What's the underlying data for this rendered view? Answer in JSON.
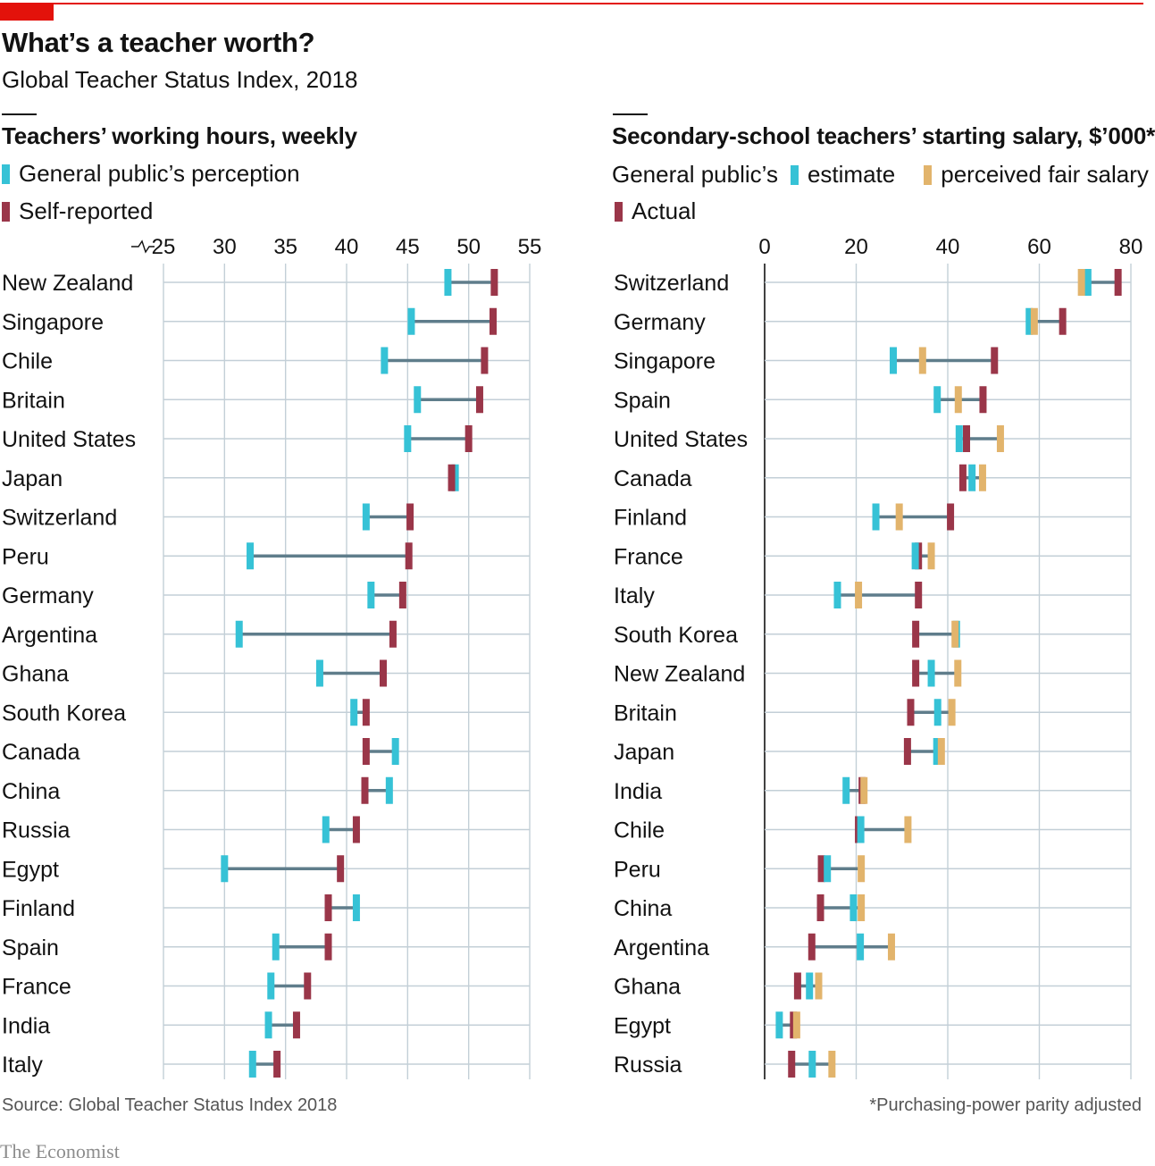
{
  "header": {
    "title": "What’s a teacher worth?",
    "subtitle": "Global Teacher Status Index, 2018"
  },
  "colors": {
    "estimate": "#36c2d6",
    "self": "#9a3649",
    "fair": "#e2b46c",
    "connector": "#5f7d8b",
    "grid": "#c3cfd7",
    "axis": "#121212",
    "brand": "#e3120b"
  },
  "left_chart": {
    "title": "Teachers’ working hours, weekly",
    "legend": [
      {
        "label": "General public’s perception",
        "color": "#36c2d6"
      },
      {
        "label": "Self-reported",
        "color": "#9a3649"
      }
    ]
  },
  "right_chart": {
    "title": "Secondary-school teachers’ starting salary, $’000*",
    "legend_prefix": "General public’s",
    "legend": [
      {
        "label": "estimate",
        "color": "#36c2d6"
      },
      {
        "label": "perceived fair salary",
        "color": "#e2b46c"
      },
      {
        "label": "Actual",
        "color": "#9a3649"
      }
    ]
  },
  "chart_data": [
    {
      "type": "dumbbell",
      "title": "Teachers’ working hours, weekly",
      "xlim": [
        25,
        55
      ],
      "axis_break": true,
      "ticks": [
        25,
        30,
        35,
        40,
        45,
        50,
        55
      ],
      "grid": true,
      "series": [
        {
          "name": "General public’s perception",
          "key": "perception"
        },
        {
          "name": "Self-reported",
          "key": "self"
        }
      ],
      "rows": [
        {
          "country": "New Zealand",
          "perception": 48.3,
          "self": 52.1
        },
        {
          "country": "Singapore",
          "perception": 45.3,
          "self": 52.0
        },
        {
          "country": "Chile",
          "perception": 43.1,
          "self": 51.3
        },
        {
          "country": "Britain",
          "perception": 45.8,
          "self": 50.9
        },
        {
          "country": "United States",
          "perception": 45.0,
          "self": 50.0
        },
        {
          "country": "Japan",
          "perception": 48.9,
          "self": 48.6
        },
        {
          "country": "Switzerland",
          "perception": 41.6,
          "self": 45.2
        },
        {
          "country": "Peru",
          "perception": 32.1,
          "self": 45.1
        },
        {
          "country": "Germany",
          "perception": 42.0,
          "self": 44.6
        },
        {
          "country": "Argentina",
          "perception": 31.2,
          "self": 43.8
        },
        {
          "country": "Ghana",
          "perception": 37.8,
          "self": 43.0
        },
        {
          "country": "South Korea",
          "perception": 40.6,
          "self": 41.6
        },
        {
          "country": "Canada",
          "perception": 44.0,
          "self": 41.6
        },
        {
          "country": "China",
          "perception": 43.5,
          "self": 41.5
        },
        {
          "country": "Russia",
          "perception": 38.3,
          "self": 40.8
        },
        {
          "country": "Egypt",
          "perception": 30.0,
          "self": 39.5
        },
        {
          "country": "Finland",
          "perception": 40.8,
          "self": 38.5
        },
        {
          "country": "Spain",
          "perception": 34.2,
          "self": 38.5
        },
        {
          "country": "France",
          "perception": 33.8,
          "self": 36.8
        },
        {
          "country": "India",
          "perception": 33.6,
          "self": 35.9
        },
        {
          "country": "Italy",
          "perception": 32.3,
          "self": 34.3
        }
      ]
    },
    {
      "type": "dumbbell",
      "title": "Secondary-school teachers’ starting salary, $’000*",
      "xlim": [
        0,
        80
      ],
      "ticks": [
        0,
        20,
        40,
        60,
        80
      ],
      "grid": true,
      "series": [
        {
          "name": "estimate",
          "key": "estimate"
        },
        {
          "name": "perceived fair salary",
          "key": "fair"
        },
        {
          "name": "Actual",
          "key": "actual"
        }
      ],
      "rows": [
        {
          "country": "Switzerland",
          "estimate": 70.6,
          "fair": 69.2,
          "actual": 77.2
        },
        {
          "country": "Germany",
          "estimate": 57.8,
          "fair": 58.9,
          "actual": 65.1
        },
        {
          "country": "Singapore",
          "estimate": 28.1,
          "fair": 34.5,
          "actual": 50.2
        },
        {
          "country": "Spain",
          "estimate": 37.7,
          "fair": 42.3,
          "actual": 47.7
        },
        {
          "country": "United States",
          "estimate": 42.5,
          "fair": 51.5,
          "actual": 44.1
        },
        {
          "country": "Canada",
          "estimate": 45.3,
          "fair": 47.6,
          "actual": 43.3
        },
        {
          "country": "Finland",
          "estimate": 24.3,
          "fair": 29.4,
          "actual": 40.6
        },
        {
          "country": "France",
          "estimate": 32.9,
          "fair": 36.4,
          "actual": 33.6
        },
        {
          "country": "Italy",
          "estimate": 15.9,
          "fair": 20.5,
          "actual": 33.6
        },
        {
          "country": "South Korea",
          "estimate": 41.9,
          "fair": 41.6,
          "actual": 33.0
        },
        {
          "country": "New Zealand",
          "estimate": 36.4,
          "fair": 42.2,
          "actual": 33.0
        },
        {
          "country": "Britain",
          "estimate": 37.8,
          "fair": 40.9,
          "actual": 31.9
        },
        {
          "country": "Japan",
          "estimate": 37.6,
          "fair": 38.6,
          "actual": 31.2
        },
        {
          "country": "India",
          "estimate": 17.8,
          "fair": 21.7,
          "actual": 21.3
        },
        {
          "country": "Chile",
          "estimate": 21.0,
          "fair": 31.3,
          "actual": 20.5
        },
        {
          "country": "Peru",
          "estimate": 13.7,
          "fair": 21.1,
          "actual": 12.4
        },
        {
          "country": "China",
          "estimate": 19.4,
          "fair": 21.1,
          "actual": 12.2
        },
        {
          "country": "Argentina",
          "estimate": 20.9,
          "fair": 27.7,
          "actual": 10.3
        },
        {
          "country": "Ghana",
          "estimate": 9.8,
          "fair": 11.8,
          "actual": 7.2
        },
        {
          "country": "Egypt",
          "estimate": 3.2,
          "fair": 7.0,
          "actual": 6.3
        },
        {
          "country": "Russia",
          "estimate": 10.4,
          "fair": 14.7,
          "actual": 5.9
        }
      ]
    }
  ],
  "footer": {
    "source": "Source: Global Teacher Status Index 2018",
    "note": "*Purchasing-power parity adjusted",
    "brand": "The Economist"
  }
}
